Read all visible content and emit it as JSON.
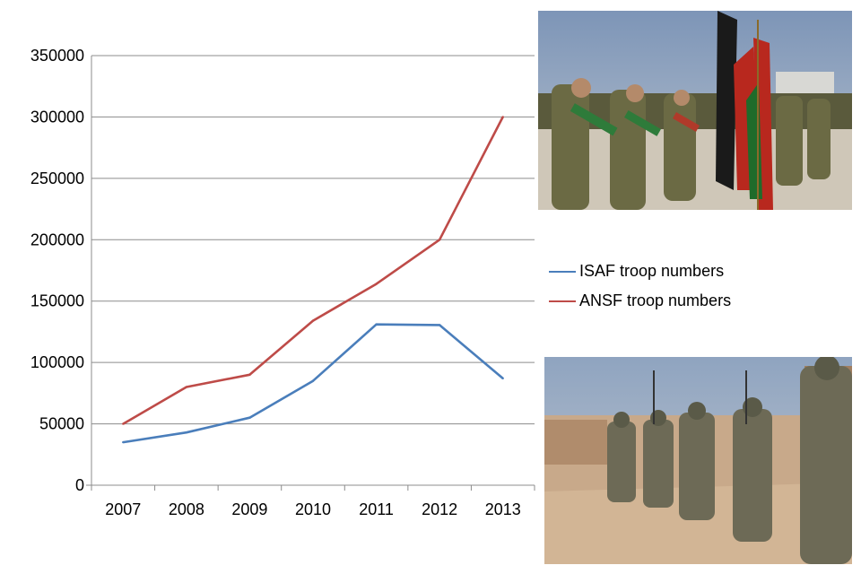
{
  "chart_data": {
    "type": "line",
    "title": "",
    "xlabel": "",
    "ylabel": "",
    "categories": [
      "2007",
      "2008",
      "2009",
      "2010",
      "2011",
      "2012",
      "2013"
    ],
    "ylim": [
      0,
      350000
    ],
    "yticks": [
      "0",
      "50000",
      "100000",
      "150000",
      "200000",
      "250000",
      "300000",
      "350000"
    ],
    "grid": "horizontal",
    "legend_position": "right",
    "series": [
      {
        "name": "ISAF troop numbers",
        "color": "#4a7ebb",
        "values": [
          35000,
          43000,
          55000,
          85000,
          131000,
          130500,
          87000
        ]
      },
      {
        "name": "ANSF troop numbers",
        "color": "#be4b48",
        "values": [
          50000,
          80000,
          90000,
          134000,
          164000,
          200000,
          300000
        ]
      }
    ]
  },
  "images": {
    "top": {
      "icon": "soldiers-with-flags-photo"
    },
    "bottom": {
      "icon": "soldiers-patrol-photo"
    }
  }
}
